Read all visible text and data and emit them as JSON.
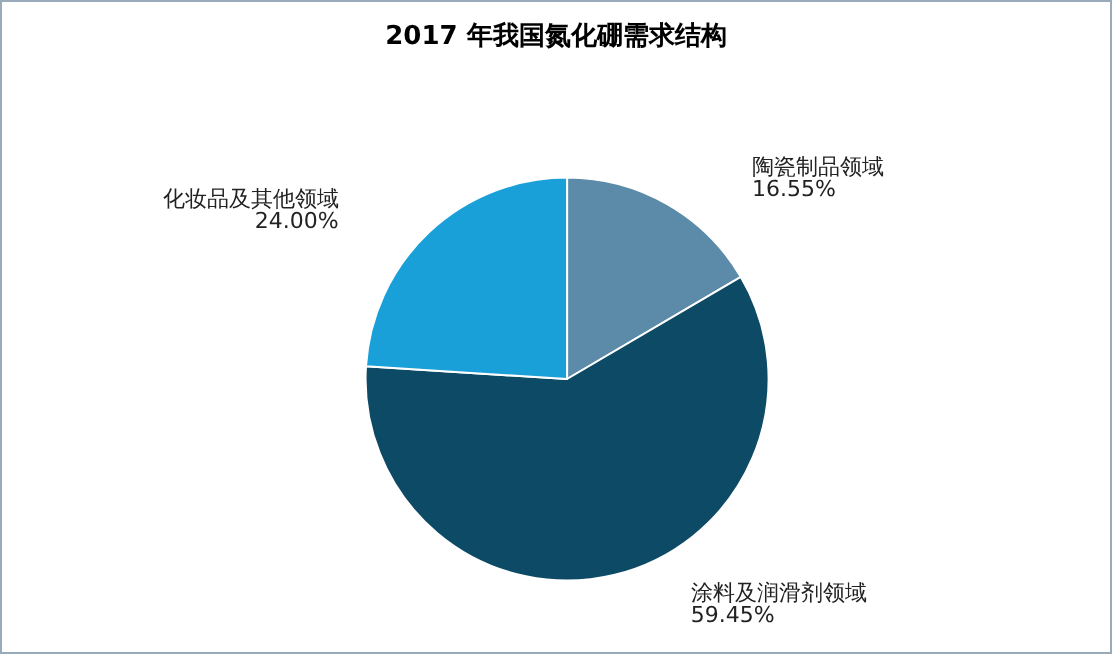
{
  "chart_data": {
    "type": "pie",
    "title": "2017 年我国氮化硼需求结构",
    "categories": [
      "陶瓷制品领域",
      "涂料及润滑剂领域",
      "化妆品及其他领域"
    ],
    "values": [
      16.55,
      59.45,
      24.0
    ],
    "value_labels": [
      "16.55%",
      "59.45%",
      "24.00%"
    ],
    "colors": [
      "#5b8ba8",
      "#0d4a66",
      "#1aa0d8"
    ],
    "legend": false
  }
}
